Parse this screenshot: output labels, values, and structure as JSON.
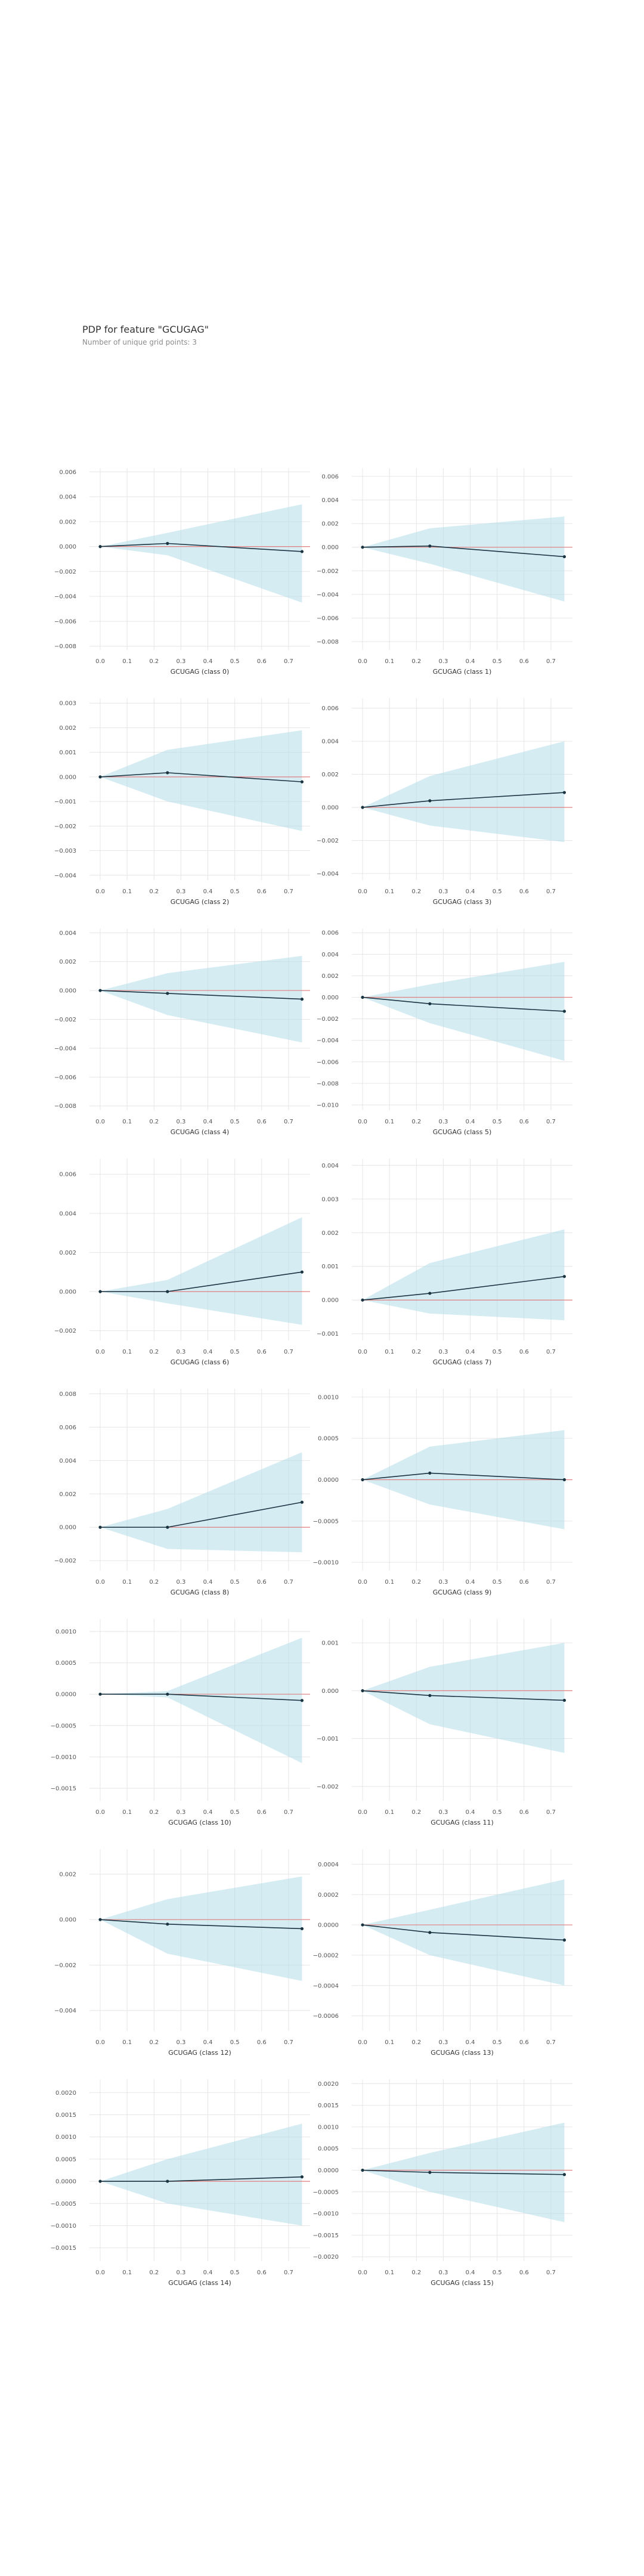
{
  "header": {
    "title": "PDP for feature \"GCUGAG\"",
    "subtitle": "Number of unique grid points: 3"
  },
  "colors": {
    "band": "#b3dcea",
    "line": "#1a3441",
    "zero_line": "#e08080",
    "grid": "#e6e6e6",
    "tick_text": "#555555"
  },
  "chart_data": [
    {
      "type": "line",
      "xlabel": "GCUGAG (class 0)",
      "x": [
        0,
        0.25,
        0.75
      ],
      "y": [
        0.0,
        0.00025,
        -0.0004
      ],
      "band_upper": [
        0.0,
        0.0011,
        0.0034
      ],
      "band_lower": [
        0.0,
        -0.0007,
        -0.0045
      ],
      "yticks": [
        -0.008,
        -0.006,
        -0.004,
        -0.002,
        0.0,
        0.002,
        0.004,
        0.006
      ],
      "ytick_labels": [
        "−0.008",
        "−0.006",
        "−0.004",
        "−0.002",
        "0.000",
        "0.002",
        "0.004",
        "0.006"
      ],
      "ylim": [
        -0.0083,
        0.0063
      ],
      "xticks": [
        0,
        0.1,
        0.2,
        0.3,
        0.4,
        0.5,
        0.6,
        0.7
      ],
      "xtick_labels": [
        "0.0",
        "0.1",
        "0.2",
        "0.3",
        "0.4",
        "0.5",
        "0.6",
        "0.7"
      ],
      "xlim": [
        -0.04,
        0.78
      ]
    },
    {
      "type": "line",
      "xlabel": "GCUGAG (class 1)",
      "x": [
        0,
        0.25,
        0.75
      ],
      "y": [
        0.0,
        0.0001,
        -0.0008
      ],
      "band_upper": [
        0.0,
        0.0016,
        0.0026
      ],
      "band_lower": [
        0.0,
        -0.0014,
        -0.0046
      ],
      "yticks": [
        -0.008,
        -0.006,
        -0.004,
        -0.002,
        0.0,
        0.002,
        0.004,
        0.006
      ],
      "ytick_labels": [
        "−0.008",
        "−0.006",
        "−0.004",
        "−0.002",
        "0.000",
        "0.002",
        "0.004",
        "0.006"
      ],
      "ylim": [
        -0.0087,
        0.0067
      ],
      "xticks": [
        0,
        0.1,
        0.2,
        0.3,
        0.4,
        0.5,
        0.6,
        0.7
      ],
      "xtick_labels": [
        "0.0",
        "0.1",
        "0.2",
        "0.3",
        "0.4",
        "0.5",
        "0.6",
        "0.7"
      ],
      "xlim": [
        -0.04,
        0.78
      ]
    },
    {
      "type": "line",
      "xlabel": "GCUGAG (class 2)",
      "x": [
        0,
        0.25,
        0.75
      ],
      "y": [
        0.0,
        0.00017,
        -0.0002
      ],
      "band_upper": [
        0.0,
        0.0011,
        0.0019
      ],
      "band_lower": [
        0.0,
        -0.001,
        -0.0022
      ],
      "yticks": [
        -0.004,
        -0.003,
        -0.002,
        -0.001,
        0.0,
        0.001,
        0.002,
        0.003
      ],
      "ytick_labels": [
        "−0.004",
        "−0.003",
        "−0.002",
        "−0.001",
        "0.000",
        "0.001",
        "0.002",
        "0.003"
      ],
      "ylim": [
        -0.0042,
        0.0032
      ],
      "xticks": [
        0,
        0.1,
        0.2,
        0.3,
        0.4,
        0.5,
        0.6,
        0.7
      ],
      "xtick_labels": [
        "0.0",
        "0.1",
        "0.2",
        "0.3",
        "0.4",
        "0.5",
        "0.6",
        "0.7"
      ],
      "xlim": [
        -0.04,
        0.78
      ]
    },
    {
      "type": "line",
      "xlabel": "GCUGAG (class 3)",
      "x": [
        0,
        0.25,
        0.75
      ],
      "y": [
        0.0,
        0.0004,
        0.0009
      ],
      "band_upper": [
        0.0,
        0.0019,
        0.004
      ],
      "band_lower": [
        0.0,
        -0.0011,
        -0.0021
      ],
      "yticks": [
        -0.004,
        -0.002,
        0.0,
        0.002,
        0.004,
        0.006
      ],
      "ytick_labels": [
        "−0.004",
        "−0.002",
        "0.000",
        "0.002",
        "0.004",
        "0.006"
      ],
      "ylim": [
        -0.0044,
        0.0066
      ],
      "xticks": [
        0,
        0.1,
        0.2,
        0.3,
        0.4,
        0.5,
        0.6,
        0.7
      ],
      "xtick_labels": [
        "0.0",
        "0.1",
        "0.2",
        "0.3",
        "0.4",
        "0.5",
        "0.6",
        "0.7"
      ],
      "xlim": [
        -0.04,
        0.78
      ]
    },
    {
      "type": "line",
      "xlabel": "GCUGAG (class 4)",
      "x": [
        0,
        0.25,
        0.75
      ],
      "y": [
        0.0,
        -0.0002,
        -0.0006
      ],
      "band_upper": [
        0.0,
        0.0012,
        0.0024
      ],
      "band_lower": [
        0.0,
        -0.0017,
        -0.0036
      ],
      "yticks": [
        -0.008,
        -0.006,
        -0.004,
        -0.002,
        0.0,
        0.002,
        0.004
      ],
      "ytick_labels": [
        "−0.008",
        "−0.006",
        "−0.004",
        "−0.002",
        "0.000",
        "0.002",
        "0.004"
      ],
      "ylim": [
        -0.0083,
        0.0043
      ],
      "xticks": [
        0,
        0.1,
        0.2,
        0.3,
        0.4,
        0.5,
        0.6,
        0.7
      ],
      "xtick_labels": [
        "0.0",
        "0.1",
        "0.2",
        "0.3",
        "0.4",
        "0.5",
        "0.6",
        "0.7"
      ],
      "xlim": [
        -0.04,
        0.78
      ]
    },
    {
      "type": "line",
      "xlabel": "GCUGAG (class 5)",
      "x": [
        0,
        0.25,
        0.75
      ],
      "y": [
        0.0,
        -0.0006,
        -0.0013
      ],
      "band_upper": [
        0.0,
        0.0012,
        0.0033
      ],
      "band_lower": [
        0.0,
        -0.0024,
        -0.0059
      ],
      "yticks": [
        -0.01,
        -0.008,
        -0.006,
        -0.004,
        -0.002,
        0.0,
        0.002,
        0.004,
        0.006
      ],
      "ytick_labels": [
        "−0.010",
        "−0.008",
        "−0.006",
        "−0.004",
        "−0.002",
        "0.000",
        "0.002",
        "0.004",
        "0.006"
      ],
      "ylim": [
        -0.0105,
        0.0064
      ],
      "xticks": [
        0,
        0.1,
        0.2,
        0.3,
        0.4,
        0.5,
        0.6,
        0.7
      ],
      "xtick_labels": [
        "0.0",
        "0.1",
        "0.2",
        "0.3",
        "0.4",
        "0.5",
        "0.6",
        "0.7"
      ],
      "xlim": [
        -0.04,
        0.78
      ]
    },
    {
      "type": "line",
      "xlabel": "GCUGAG (class 6)",
      "x": [
        0,
        0.25,
        0.75
      ],
      "y": [
        0.0,
        0.0,
        0.001
      ],
      "band_upper": [
        0.0,
        0.0006,
        0.0038
      ],
      "band_lower": [
        0.0,
        -0.0006,
        -0.0017
      ],
      "yticks": [
        -0.002,
        0.0,
        0.002,
        0.004,
        0.006
      ],
      "ytick_labels": [
        "−0.002",
        "0.000",
        "0.002",
        "0.004",
        "0.006"
      ],
      "ylim": [
        -0.0025,
        0.0068
      ],
      "xticks": [
        0,
        0.1,
        0.2,
        0.3,
        0.4,
        0.5,
        0.6,
        0.7
      ],
      "xtick_labels": [
        "0.0",
        "0.1",
        "0.2",
        "0.3",
        "0.4",
        "0.5",
        "0.6",
        "0.7"
      ],
      "xlim": [
        -0.04,
        0.78
      ]
    },
    {
      "type": "line",
      "xlabel": "GCUGAG (class 7)",
      "x": [
        0,
        0.25,
        0.75
      ],
      "y": [
        0.0,
        0.0002,
        0.0007
      ],
      "band_upper": [
        0.0,
        0.0011,
        0.0021
      ],
      "band_lower": [
        0.0,
        -0.0004,
        -0.0006
      ],
      "yticks": [
        -0.001,
        0.0,
        0.001,
        0.002,
        0.003,
        0.004
      ],
      "ytick_labels": [
        "−0.001",
        "0.000",
        "0.001",
        "0.002",
        "0.003",
        "0.004"
      ],
      "ylim": [
        -0.0012,
        0.0042
      ],
      "xticks": [
        0,
        0.1,
        0.2,
        0.3,
        0.4,
        0.5,
        0.6,
        0.7
      ],
      "xtick_labels": [
        "0.0",
        "0.1",
        "0.2",
        "0.3",
        "0.4",
        "0.5",
        "0.6",
        "0.7"
      ],
      "xlim": [
        -0.04,
        0.78
      ]
    },
    {
      "type": "line",
      "xlabel": "GCUGAG (class 8)",
      "x": [
        0,
        0.25,
        0.75
      ],
      "y": [
        0.0,
        0.0,
        0.0015
      ],
      "band_upper": [
        0.0,
        0.0011,
        0.0045
      ],
      "band_lower": [
        0.0,
        -0.0013,
        -0.0015
      ],
      "yticks": [
        -0.002,
        0.0,
        0.002,
        0.004,
        0.006,
        0.008
      ],
      "ytick_labels": [
        "−0.002",
        "0.000",
        "0.002",
        "0.004",
        "0.006",
        "0.008"
      ],
      "ylim": [
        -0.0026,
        0.0083
      ],
      "xticks": [
        0,
        0.1,
        0.2,
        0.3,
        0.4,
        0.5,
        0.6,
        0.7
      ],
      "xtick_labels": [
        "0.0",
        "0.1",
        "0.2",
        "0.3",
        "0.4",
        "0.5",
        "0.6",
        "0.7"
      ],
      "xlim": [
        -0.04,
        0.78
      ]
    },
    {
      "type": "line",
      "xlabel": "GCUGAG (class 9)",
      "x": [
        0,
        0.25,
        0.75
      ],
      "y": [
        0.0,
        8e-05,
        0.0
      ],
      "band_upper": [
        0.0,
        0.0004,
        0.0006
      ],
      "band_lower": [
        0.0,
        -0.0003,
        -0.0006
      ],
      "yticks": [
        -0.001,
        -0.0005,
        0.0,
        0.0005,
        0.001
      ],
      "ytick_labels": [
        "−0.0010",
        "−0.0005",
        "0.0000",
        "0.0005",
        "0.0010"
      ],
      "ylim": [
        -0.0011,
        0.0011
      ],
      "xticks": [
        0,
        0.1,
        0.2,
        0.3,
        0.4,
        0.5,
        0.6,
        0.7
      ],
      "xtick_labels": [
        "0.0",
        "0.1",
        "0.2",
        "0.3",
        "0.4",
        "0.5",
        "0.6",
        "0.7"
      ],
      "xlim": [
        -0.04,
        0.78
      ]
    },
    {
      "type": "line",
      "xlabel": "GCUGAG (class 10)",
      "x": [
        0,
        0.25,
        0.75
      ],
      "y": [
        0.0,
        0.0,
        -0.0001
      ],
      "band_upper": [
        0.0,
        5e-05,
        0.0009
      ],
      "band_lower": [
        0.0,
        -5e-05,
        -0.0011
      ],
      "yticks": [
        -0.0015,
        -0.001,
        -0.0005,
        0.0,
        0.0005,
        0.001
      ],
      "ytick_labels": [
        "−0.0015",
        "−0.0010",
        "−0.0005",
        "0.0000",
        "0.0005",
        "0.0010"
      ],
      "ylim": [
        -0.0017,
        0.0012
      ],
      "xticks": [
        0,
        0.1,
        0.2,
        0.3,
        0.4,
        0.5,
        0.6,
        0.7
      ],
      "xtick_labels": [
        "0.0",
        "0.1",
        "0.2",
        "0.3",
        "0.4",
        "0.5",
        "0.6",
        "0.7"
      ],
      "xlim": [
        -0.04,
        0.78
      ]
    },
    {
      "type": "line",
      "xlabel": "GCUGAG (class 11)",
      "x": [
        0,
        0.25,
        0.75
      ],
      "y": [
        0.0,
        -0.0001,
        -0.0002
      ],
      "band_upper": [
        0.0,
        0.0005,
        0.001
      ],
      "band_lower": [
        0.0,
        -0.0007,
        -0.0013
      ],
      "yticks": [
        -0.002,
        -0.001,
        0.0,
        0.001
      ],
      "ytick_labels": [
        "−0.002",
        "−0.001",
        "0.000",
        "0.001"
      ],
      "ylim": [
        -0.0023,
        0.0015
      ],
      "xticks": [
        0,
        0.1,
        0.2,
        0.3,
        0.4,
        0.5,
        0.6,
        0.7
      ],
      "xtick_labels": [
        "0.0",
        "0.1",
        "0.2",
        "0.3",
        "0.4",
        "0.5",
        "0.6",
        "0.7"
      ],
      "xlim": [
        -0.04,
        0.78
      ]
    },
    {
      "type": "line",
      "xlabel": "GCUGAG (class 12)",
      "x": [
        0,
        0.25,
        0.75
      ],
      "y": [
        0.0,
        -0.0002,
        -0.0004
      ],
      "band_upper": [
        0.0,
        0.0009,
        0.0019
      ],
      "band_lower": [
        0.0,
        -0.0015,
        -0.0027
      ],
      "yticks": [
        -0.004,
        -0.002,
        0.0,
        0.002
      ],
      "ytick_labels": [
        "−0.004",
        "−0.002",
        "0.000",
        "0.002"
      ],
      "ylim": [
        -0.0049,
        0.0031
      ],
      "xticks": [
        0,
        0.1,
        0.2,
        0.3,
        0.4,
        0.5,
        0.6,
        0.7
      ],
      "xtick_labels": [
        "0.0",
        "0.1",
        "0.2",
        "0.3",
        "0.4",
        "0.5",
        "0.6",
        "0.7"
      ],
      "xlim": [
        -0.04,
        0.78
      ]
    },
    {
      "type": "line",
      "xlabel": "GCUGAG (class 13)",
      "x": [
        0,
        0.25,
        0.75
      ],
      "y": [
        0.0,
        -5e-05,
        -0.0001
      ],
      "band_upper": [
        0.0,
        0.0001,
        0.0003
      ],
      "band_lower": [
        0.0,
        -0.0002,
        -0.0004
      ],
      "yticks": [
        -0.0006,
        -0.0004,
        -0.0002,
        0.0,
        0.0002,
        0.0004
      ],
      "ytick_labels": [
        "−0.0006",
        "−0.0004",
        "−0.0002",
        "0.0000",
        "0.0002",
        "0.0004"
      ],
      "ylim": [
        -0.0007,
        0.0005
      ],
      "xticks": [
        0,
        0.1,
        0.2,
        0.3,
        0.4,
        0.5,
        0.6,
        0.7
      ],
      "xtick_labels": [
        "0.0",
        "0.1",
        "0.2",
        "0.3",
        "0.4",
        "0.5",
        "0.6",
        "0.7"
      ],
      "xlim": [
        -0.04,
        0.78
      ]
    },
    {
      "type": "line",
      "xlabel": "GCUGAG (class 14)",
      "x": [
        0,
        0.25,
        0.75
      ],
      "y": [
        0.0,
        0.0,
        0.0001
      ],
      "band_upper": [
        0.0,
        0.0005,
        0.0013
      ],
      "band_lower": [
        0.0,
        -0.0005,
        -0.001
      ],
      "yticks": [
        -0.0015,
        -0.001,
        -0.0005,
        0.0,
        0.0005,
        0.001,
        0.0015,
        0.002
      ],
      "ytick_labels": [
        "−0.0015",
        "−0.0010",
        "−0.0005",
        "0.0000",
        "0.0005",
        "0.0010",
        "0.0015",
        "0.0020"
      ],
      "ylim": [
        -0.0018,
        0.0023
      ],
      "xticks": [
        0,
        0.1,
        0.2,
        0.3,
        0.4,
        0.5,
        0.6,
        0.7
      ],
      "xtick_labels": [
        "0.0",
        "0.1",
        "0.2",
        "0.3",
        "0.4",
        "0.5",
        "0.6",
        "0.7"
      ],
      "xlim": [
        -0.04,
        0.78
      ]
    },
    {
      "type": "line",
      "xlabel": "GCUGAG (class 15)",
      "x": [
        0,
        0.25,
        0.75
      ],
      "y": [
        0.0,
        -5e-05,
        -0.0001
      ],
      "band_upper": [
        0.0,
        0.0004,
        0.0011
      ],
      "band_lower": [
        0.0,
        -0.0005,
        -0.0012
      ],
      "yticks": [
        -0.002,
        -0.0015,
        -0.001,
        -0.0005,
        0.0,
        0.0005,
        0.001,
        0.0015,
        0.002
      ],
      "ytick_labels": [
        "−0.0020",
        "−0.0015",
        "−0.0010",
        "−0.0005",
        "0.0000",
        "0.0005",
        "0.0010",
        "0.0015",
        "0.0020"
      ],
      "ylim": [
        -0.0021,
        0.0021
      ],
      "xticks": [
        0,
        0.1,
        0.2,
        0.3,
        0.4,
        0.5,
        0.6,
        0.7
      ],
      "xtick_labels": [
        "0.0",
        "0.1",
        "0.2",
        "0.3",
        "0.4",
        "0.5",
        "0.6",
        "0.7"
      ],
      "xlim": [
        -0.04,
        0.78
      ]
    }
  ]
}
